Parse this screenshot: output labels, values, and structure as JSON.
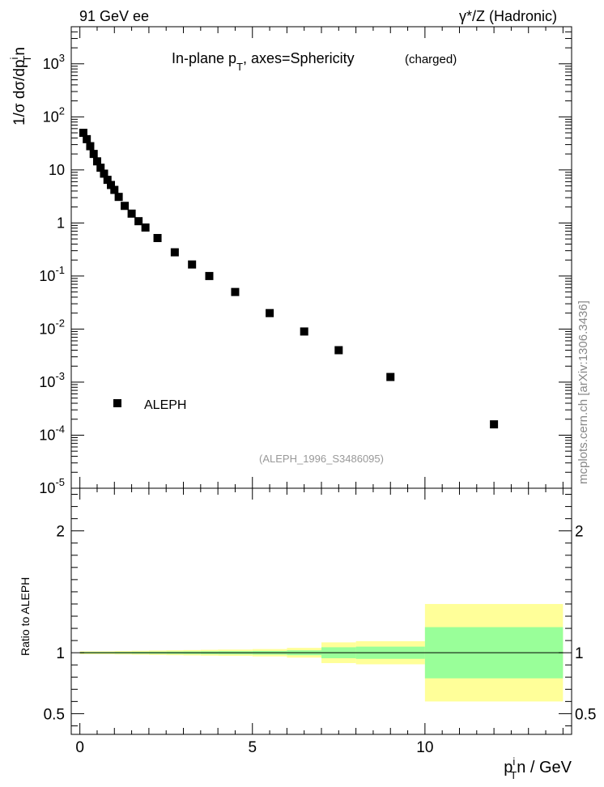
{
  "header": {
    "left": "91 GeV ee",
    "right": "γ*/Z (Hadronic)"
  },
  "watermark": "mcplots.cern.ch [arXiv:1306.3436]",
  "chart_data": [
    {
      "type": "scatter",
      "title_main": "In-plane p",
      "title_sub": "T",
      "title_rest": ", axes=Sphericity",
      "title_note": "(charged)",
      "ylabel": "1/σ dσ/dp",
      "ylabel_sub": "T",
      "ylabel_sup": "i",
      "ylabel_tail": "n",
      "yscale": "log",
      "ylim": [
        1e-05,
        5000
      ],
      "xlim": [
        -0.25,
        14.25
      ],
      "ytick_labels": [
        {
          "mant": "10",
          "exp": "-5",
          "value": 1e-05
        },
        {
          "mant": "10",
          "exp": "-4",
          "value": 0.0001
        },
        {
          "mant": "10",
          "exp": "-3",
          "value": 0.001
        },
        {
          "mant": "10",
          "exp": "-2",
          "value": 0.01
        },
        {
          "mant": "10",
          "exp": "-1",
          "value": 0.1
        },
        {
          "mant": "1",
          "exp": "",
          "value": 1
        },
        {
          "mant": "10",
          "exp": "",
          "value": 10
        },
        {
          "mant": "10",
          "exp": "2",
          "value": 100
        },
        {
          "mant": "10",
          "exp": "3",
          "value": 1000
        }
      ],
      "legend": "ALEPH",
      "legend_position": "bottom-left",
      "analysis_tag": "(ALEPH_1996_S3486095)",
      "series": [
        {
          "name": "ALEPH",
          "color": "#000000",
          "x": [
            0.1,
            0.2,
            0.3,
            0.4,
            0.5,
            0.6,
            0.7,
            0.8,
            0.9,
            1.0,
            1.125,
            1.3,
            1.5,
            1.7,
            1.9,
            2.25,
            2.75,
            3.25,
            3.75,
            4.5,
            5.5,
            6.5,
            7.5,
            9.0,
            12.0
          ],
          "y": [
            50,
            38,
            28,
            20,
            14.5,
            11,
            8.5,
            6.5,
            5.2,
            4.2,
            3.1,
            2.1,
            1.5,
            1.08,
            0.82,
            0.52,
            0.28,
            0.165,
            0.1,
            0.05,
            0.02,
            0.009,
            0.004,
            0.00125,
            0.00016
          ]
        }
      ]
    },
    {
      "type": "area",
      "ylabel": "Ratio to ALEPH",
      "xlabel_main": "p",
      "xlabel_sub": "T",
      "xlabel_sup": "i",
      "xlabel_tail": "n / GeV",
      "xlim": [
        -0.25,
        14.25
      ],
      "ylim": [
        0.33,
        2.35
      ],
      "x_ticks": [
        0,
        5,
        10
      ],
      "x_tick_labels": [
        "0",
        "5",
        "10"
      ],
      "y_ticks": [
        0.5,
        1,
        2
      ],
      "y_tick_labels": [
        "0.5",
        "1",
        "2"
      ],
      "colors": {
        "outer_band": "#ffff99",
        "inner_band": "#99ff99",
        "line": "#000000"
      },
      "bins": [
        {
          "x0": 0.0,
          "x1": 0.5,
          "outer": 0.012,
          "inner": 0.006
        },
        {
          "x0": 0.5,
          "x1": 1.0,
          "outer": 0.012,
          "inner": 0.006
        },
        {
          "x0": 1.0,
          "x1": 1.5,
          "outer": 0.014,
          "inner": 0.007
        },
        {
          "x0": 1.5,
          "x1": 2.0,
          "outer": 0.016,
          "inner": 0.008
        },
        {
          "x0": 2.0,
          "x1": 2.5,
          "outer": 0.018,
          "inner": 0.009
        },
        {
          "x0": 2.5,
          "x1": 3.0,
          "outer": 0.02,
          "inner": 0.01
        },
        {
          "x0": 3.0,
          "x1": 3.5,
          "outer": 0.022,
          "inner": 0.011
        },
        {
          "x0": 3.5,
          "x1": 4.0,
          "outer": 0.024,
          "inner": 0.012
        },
        {
          "x0": 4.0,
          "x1": 5.0,
          "outer": 0.026,
          "inner": 0.013
        },
        {
          "x0": 5.0,
          "x1": 6.0,
          "outer": 0.03,
          "inner": 0.015
        },
        {
          "x0": 6.0,
          "x1": 7.0,
          "outer": 0.04,
          "inner": 0.02
        },
        {
          "x0": 7.0,
          "x1": 8.0,
          "outer": 0.085,
          "inner": 0.045
        },
        {
          "x0": 8.0,
          "x1": 10.0,
          "outer": 0.095,
          "inner": 0.05
        },
        {
          "x0": 10.0,
          "x1": 14.0,
          "outer": 0.4,
          "inner": 0.21
        }
      ]
    }
  ]
}
